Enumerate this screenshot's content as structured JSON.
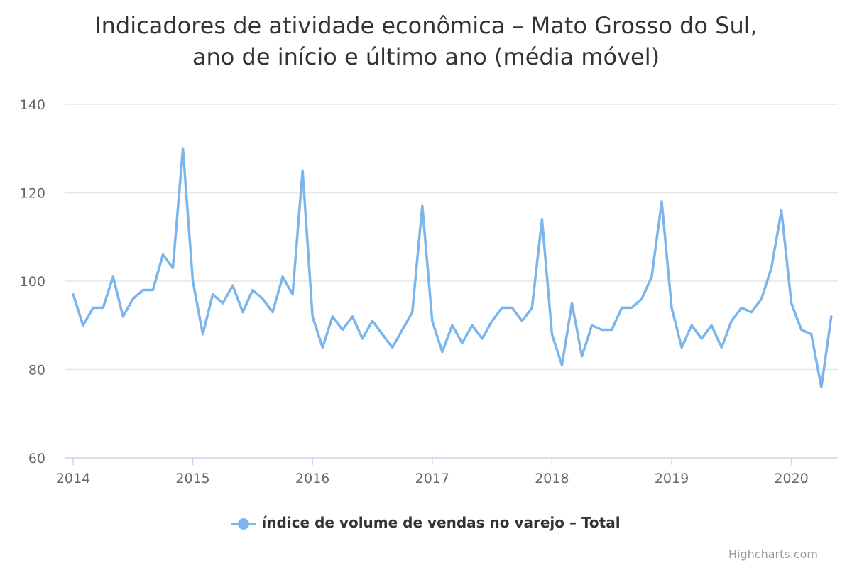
{
  "title_lines": [
    "Indicadores de atividade econômica – Mato Grosso do Sul,",
    "ano de início e último ano (média móvel)"
  ],
  "credits": "Highcharts.com",
  "chart_data": {
    "type": "line",
    "title": "Indicadores de atividade econômica – Mato Grosso do Sul, ano de início e último ano (média móvel)",
    "xlabel": "",
    "ylabel": "",
    "ylim": [
      60,
      140
    ],
    "y_ticks": [
      60,
      80,
      100,
      120,
      140
    ],
    "x_tick_labels": [
      "2014",
      "2015",
      "2016",
      "2017",
      "2018",
      "2019",
      "2020"
    ],
    "x_start": "2014-01",
    "grid": true,
    "legend_position": "bottom-center",
    "color": "#7cb5ec",
    "x": [
      "2014-01",
      "2014-02",
      "2014-03",
      "2014-04",
      "2014-05",
      "2014-06",
      "2014-07",
      "2014-08",
      "2014-09",
      "2014-10",
      "2014-11",
      "2014-12",
      "2015-01",
      "2015-02",
      "2015-03",
      "2015-04",
      "2015-05",
      "2015-06",
      "2015-07",
      "2015-08",
      "2015-09",
      "2015-10",
      "2015-11",
      "2015-12",
      "2016-01",
      "2016-02",
      "2016-03",
      "2016-04",
      "2016-05",
      "2016-06",
      "2016-07",
      "2016-08",
      "2016-09",
      "2016-10",
      "2016-11",
      "2016-12",
      "2017-01",
      "2017-02",
      "2017-03",
      "2017-04",
      "2017-05",
      "2017-06",
      "2017-07",
      "2017-08",
      "2017-09",
      "2017-10",
      "2017-11",
      "2017-12",
      "2018-01",
      "2018-02",
      "2018-03",
      "2018-04",
      "2018-05",
      "2018-06",
      "2018-07",
      "2018-08",
      "2018-09",
      "2018-10",
      "2018-11",
      "2018-12",
      "2019-01",
      "2019-02",
      "2019-03",
      "2019-04",
      "2019-05",
      "2019-06",
      "2019-07",
      "2019-08",
      "2019-09",
      "2019-10",
      "2019-11",
      "2019-12",
      "2020-01",
      "2020-02",
      "2020-03",
      "2020-04",
      "2020-05"
    ],
    "series": [
      {
        "name": "índice de volume de vendas no varejo – Total",
        "values": [
          97,
          90,
          94,
          94,
          101,
          92,
          96,
          98,
          98,
          106,
          103,
          130,
          100,
          88,
          97,
          95,
          99,
          93,
          98,
          96,
          93,
          101,
          97,
          125,
          92,
          85,
          92,
          89,
          92,
          87,
          91,
          88,
          85,
          89,
          93,
          117,
          91,
          84,
          90,
          86,
          90,
          87,
          91,
          94,
          94,
          91,
          94,
          114,
          88,
          81,
          95,
          83,
          90,
          89,
          89,
          94,
          94,
          96,
          101,
          118,
          94,
          85,
          90,
          87,
          90,
          85,
          91,
          94,
          93,
          96,
          103,
          116,
          95,
          89,
          88,
          76,
          92
        ]
      }
    ]
  }
}
